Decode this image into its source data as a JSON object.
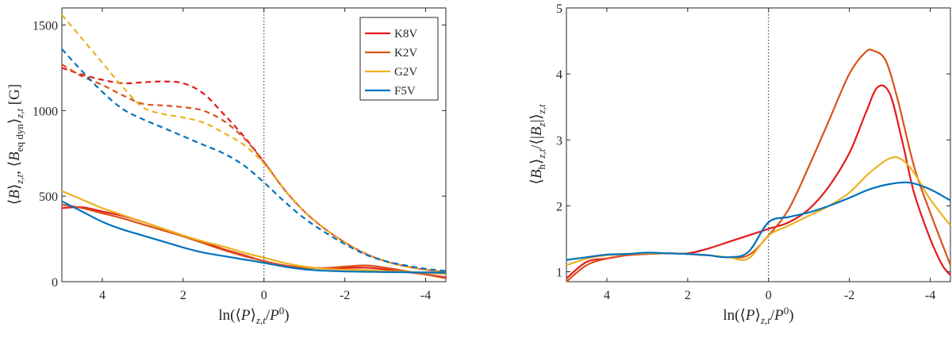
{
  "chart_data": [
    {
      "type": "line",
      "title": "",
      "xlabel": "ln(⟨P⟩z,t/P⁰)",
      "ylabel": "⟨B⟩z,t,  ⟨Beq dyn⟩z,t [G]",
      "xlim": [
        5.0,
        -4.5
      ],
      "ylim": [
        0,
        1600
      ],
      "xticks": [
        4,
        2,
        0,
        -2,
        -4
      ],
      "xtick_labels": [
        "4",
        "2",
        "0",
        "-2",
        "-4"
      ],
      "yticks": [
        0,
        500,
        1000,
        1500
      ],
      "ytick_labels": [
        "0",
        "500",
        "1000",
        "1500"
      ],
      "vline_x": 0,
      "legend": {
        "position": "top-right",
        "entries": [
          "K8V",
          "K2V",
          "G2V",
          "F5V"
        ]
      },
      "series": [
        {
          "name": "K8V",
          "style": "solid",
          "color": "#e31a1c",
          "x": [
            5.0,
            4.5,
            4.0,
            3.5,
            3.0,
            2.5,
            2.0,
            1.5,
            1.0,
            0.5,
            0.0,
            -0.5,
            -1.0,
            -1.5,
            -2.0,
            -2.5,
            -3.0,
            -3.5,
            -4.0,
            -4.5
          ],
          "y": [
            430,
            435,
            410,
            385,
            350,
            310,
            270,
            230,
            190,
            155,
            120,
            95,
            82,
            78,
            80,
            82,
            72,
            58,
            42,
            25
          ]
        },
        {
          "name": "K2V",
          "style": "solid",
          "color": "#d95319",
          "x": [
            5.0,
            4.5,
            4.0,
            3.5,
            3.0,
            2.5,
            2.0,
            1.5,
            1.0,
            0.5,
            0.0,
            -0.5,
            -1.0,
            -1.5,
            -2.0,
            -2.5,
            -3.0,
            -3.5,
            -4.0,
            -4.5
          ],
          "y": [
            450,
            430,
            400,
            370,
            335,
            300,
            265,
            225,
            185,
            150,
            120,
            95,
            82,
            80,
            88,
            95,
            82,
            62,
            42,
            20
          ]
        },
        {
          "name": "G2V",
          "style": "solid",
          "color": "#edb120",
          "x": [
            5.0,
            4.5,
            4.0,
            3.5,
            3.0,
            2.5,
            2.0,
            1.5,
            1.0,
            0.5,
            0.0,
            -0.5,
            -1.0,
            -1.5,
            -2.0,
            -2.5,
            -3.0,
            -3.5,
            -4.0,
            -4.5
          ],
          "y": [
            530,
            480,
            430,
            390,
            350,
            310,
            270,
            235,
            205,
            170,
            140,
            110,
            88,
            75,
            70,
            68,
            62,
            58,
            52,
            45
          ]
        },
        {
          "name": "F5V",
          "style": "solid",
          "color": "#0072bd",
          "x": [
            5.0,
            4.5,
            4.0,
            3.5,
            3.0,
            2.5,
            2.0,
            1.5,
            1.0,
            0.5,
            0.0,
            -0.5,
            -1.0,
            -1.5,
            -2.0,
            -2.5,
            -3.0,
            -3.5,
            -4.0,
            -4.5
          ],
          "y": [
            470,
            410,
            350,
            305,
            270,
            235,
            200,
            170,
            150,
            130,
            110,
            88,
            72,
            64,
            60,
            58,
            56,
            55,
            54,
            52
          ]
        },
        {
          "name": "K8V Beq dyn",
          "style": "dashed",
          "color": "#e31a1c",
          "x": [
            5.0,
            4.5,
            4.0,
            3.5,
            3.0,
            2.5,
            2.0,
            1.5,
            1.0,
            0.5,
            0.0,
            -0.5,
            -1.0,
            -1.5,
            -2.0,
            -2.5,
            -3.0,
            -3.5,
            -4.0,
            -4.5
          ],
          "y": [
            1250,
            1210,
            1180,
            1160,
            1165,
            1170,
            1160,
            1100,
            980,
            850,
            700,
            540,
            410,
            310,
            230,
            165,
            120,
            90,
            70,
            55
          ]
        },
        {
          "name": "K2V Beq dyn",
          "style": "dashed",
          "color": "#d95319",
          "x": [
            5.0,
            4.5,
            4.0,
            3.5,
            3.0,
            2.5,
            2.0,
            1.5,
            1.0,
            0.5,
            0.0,
            -0.5,
            -1.0,
            -1.5,
            -2.0,
            -2.5,
            -3.0,
            -3.5,
            -4.0,
            -4.5
          ],
          "y": [
            1270,
            1200,
            1150,
            1090,
            1040,
            1030,
            1020,
            1000,
            940,
            840,
            700,
            540,
            410,
            310,
            230,
            165,
            120,
            90,
            70,
            55
          ]
        },
        {
          "name": "G2V Beq dyn",
          "style": "dashed",
          "color": "#edb120",
          "x": [
            5.0,
            4.5,
            4.0,
            3.5,
            3.0,
            2.5,
            2.0,
            1.5,
            1.0,
            0.5,
            0.0,
            -0.5,
            -1.0,
            -1.5,
            -2.0,
            -2.5,
            -3.0,
            -3.5,
            -4.0,
            -4.5
          ],
          "y": [
            1560,
            1420,
            1280,
            1140,
            1020,
            980,
            960,
            930,
            870,
            800,
            690,
            540,
            410,
            310,
            230,
            165,
            120,
            90,
            70,
            55
          ]
        },
        {
          "name": "F5V Beq dyn",
          "style": "dashed",
          "color": "#0072bd",
          "x": [
            5.0,
            4.5,
            4.0,
            3.5,
            3.0,
            2.5,
            2.0,
            1.5,
            1.0,
            0.5,
            0.0,
            -0.5,
            -1.0,
            -1.5,
            -2.0,
            -2.5,
            -3.0,
            -3.5,
            -4.0,
            -4.5
          ],
          "y": [
            1360,
            1230,
            1110,
            1010,
            950,
            900,
            850,
            800,
            750,
            680,
            580,
            470,
            370,
            290,
            220,
            160,
            120,
            95,
            75,
            62
          ]
        }
      ]
    },
    {
      "type": "line",
      "title": "",
      "xlabel": "ln(⟨P⟩z,t/P⁰)",
      "ylabel": "⟨Bh⟩z,t/⟨|Bz|⟩z,t",
      "xlim": [
        5.0,
        -4.5
      ],
      "ylim": [
        0.85,
        5.0
      ],
      "xticks": [
        4,
        2,
        0,
        -2,
        -4
      ],
      "xtick_labels": [
        "4",
        "2",
        "0",
        "-2",
        "-4"
      ],
      "yticks": [
        1,
        2,
        3,
        4,
        5
      ],
      "ytick_labels": [
        "1",
        "2",
        "3",
        "4",
        "5"
      ],
      "vline_x": 0,
      "series": [
        {
          "name": "K8V",
          "style": "solid",
          "color": "#e31a1c",
          "x": [
            5.0,
            4.5,
            4.0,
            3.5,
            3.0,
            2.5,
            2.0,
            1.5,
            1.0,
            0.5,
            0.0,
            -0.5,
            -1.0,
            -1.5,
            -2.0,
            -2.4,
            -2.7,
            -3.0,
            -3.3,
            -3.6,
            -4.0,
            -4.3,
            -4.5
          ],
          "y": [
            0.9,
            1.15,
            1.2,
            1.25,
            1.27,
            1.28,
            1.28,
            1.35,
            1.45,
            1.55,
            1.65,
            1.75,
            1.95,
            2.3,
            2.8,
            3.4,
            3.8,
            3.7,
            3.0,
            2.2,
            1.5,
            1.1,
            0.95
          ]
        },
        {
          "name": "K2V",
          "style": "solid",
          "color": "#d95319",
          "x": [
            5.0,
            4.5,
            4.0,
            3.5,
            3.0,
            2.5,
            2.0,
            1.5,
            1.0,
            0.5,
            0.0,
            -0.5,
            -1.0,
            -1.5,
            -2.0,
            -2.4,
            -2.6,
            -2.9,
            -3.2,
            -3.6,
            -4.0,
            -4.5
          ],
          "y": [
            0.85,
            1.1,
            1.2,
            1.25,
            1.27,
            1.28,
            1.27,
            1.25,
            1.22,
            1.25,
            1.55,
            1.95,
            2.6,
            3.3,
            4.0,
            4.33,
            4.35,
            4.2,
            3.6,
            2.6,
            1.9,
            1.1
          ]
        },
        {
          "name": "G2V",
          "style": "solid",
          "color": "#edb120",
          "x": [
            5.0,
            4.5,
            4.0,
            3.5,
            3.0,
            2.5,
            2.0,
            1.5,
            1.0,
            0.5,
            0.0,
            -0.5,
            -1.0,
            -1.5,
            -2.0,
            -2.5,
            -3.0,
            -3.3,
            -3.6,
            -4.0,
            -4.5
          ],
          "y": [
            1.1,
            1.2,
            1.25,
            1.27,
            1.28,
            1.28,
            1.27,
            1.25,
            1.22,
            1.2,
            1.55,
            1.7,
            1.85,
            2.0,
            2.2,
            2.5,
            2.72,
            2.7,
            2.5,
            2.1,
            1.7
          ]
        },
        {
          "name": "F5V",
          "style": "solid",
          "color": "#0072bd",
          "x": [
            5.0,
            4.5,
            4.0,
            3.5,
            3.0,
            2.5,
            2.0,
            1.5,
            1.0,
            0.5,
            0.0,
            -0.5,
            -1.0,
            -1.5,
            -2.0,
            -2.5,
            -3.0,
            -3.5,
            -4.0,
            -4.5
          ],
          "y": [
            1.18,
            1.22,
            1.26,
            1.27,
            1.29,
            1.28,
            1.27,
            1.25,
            1.22,
            1.3,
            1.75,
            1.83,
            1.9,
            2.0,
            2.12,
            2.25,
            2.33,
            2.35,
            2.25,
            2.08
          ]
        }
      ]
    }
  ]
}
